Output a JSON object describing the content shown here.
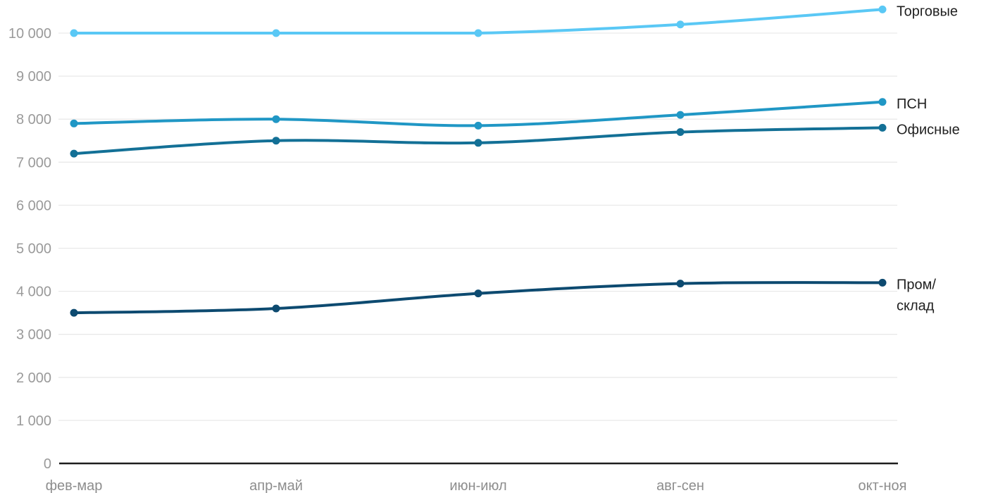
{
  "chart_data": {
    "type": "line",
    "title": "",
    "xlabel": "",
    "ylabel": "",
    "categories": [
      "фев-мар",
      "апр-май",
      "июн-июл",
      "авг-сен",
      "окт-ноя"
    ],
    "series": [
      {
        "name": "Торговые",
        "label_lines": [
          "Торговые"
        ],
        "color": "#5ac8f5",
        "values": [
          10000,
          10000,
          10000,
          10200,
          10550
        ]
      },
      {
        "name": "ПСН",
        "label_lines": [
          "ПСН"
        ],
        "color": "#2097c5",
        "values": [
          7900,
          8000,
          7850,
          8100,
          8400
        ]
      },
      {
        "name": "Офисные",
        "label_lines": [
          "Офисные"
        ],
        "color": "#137096",
        "values": [
          7200,
          7500,
          7450,
          7700,
          7800
        ]
      },
      {
        "name": "Пром/склад",
        "label_lines": [
          "Пром/",
          "склад"
        ],
        "color": "#0d4a70",
        "values": [
          3500,
          3600,
          3950,
          4180,
          4200
        ]
      }
    ],
    "y_axis": {
      "ticks": [
        0,
        1000,
        2000,
        3000,
        4000,
        5000,
        6000,
        7000,
        8000,
        9000,
        10000
      ],
      "tick_labels": [
        "0",
        "1 000",
        "2 000",
        "3 000",
        "4 000",
        "5 000",
        "6 000",
        "7 000",
        "8 000",
        "9 000",
        "10 000"
      ],
      "range": [
        0,
        10600
      ]
    },
    "x_axis": {
      "labels": [
        "фев-мар",
        "апр-май",
        "июн-июл",
        "авг-сен",
        "окт-ноя"
      ]
    },
    "grid": "horizontal",
    "legend_position": "right-inline-labels",
    "palette": {
      "background": "#ffffff",
      "gridline": "#e9e9e9",
      "axis_line": "#1e1e1e",
      "y_tick_text": "#9a9a9a",
      "x_tick_text": "#8d8d8d",
      "series_label_text": "#1f1f1f"
    }
  }
}
